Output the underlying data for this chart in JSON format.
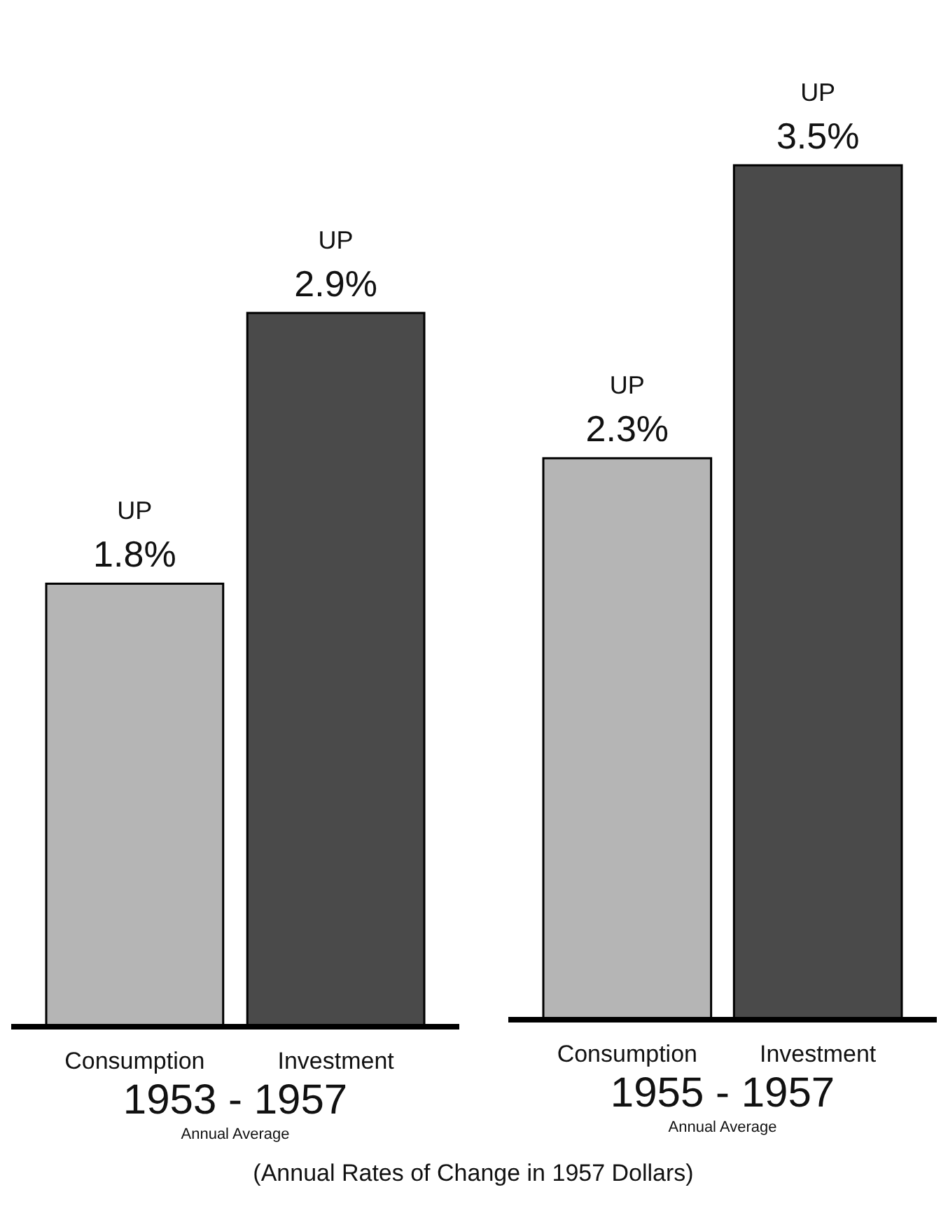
{
  "chart_data": [
    {
      "type": "bar",
      "categories": [
        "Consumption",
        "Investment"
      ],
      "values": [
        1.8,
        2.9
      ],
      "colors": [
        "#b5b5b5",
        "#4a4a4a"
      ],
      "value_labels": [
        "UP 1.8%",
        "UP 2.9%"
      ],
      "tick_labels": "x",
      "xlabel": "1953 - 1957",
      "annotations": [
        "Annual Average"
      ]
    },
    {
      "type": "bar",
      "categories": [
        "Consumption",
        "Investment"
      ],
      "values": [
        2.3,
        3.5
      ],
      "colors": [
        "#b5b5b5",
        "#4a4a4a"
      ],
      "value_labels": [
        "UP 2.3%",
        "UP 3.5%"
      ],
      "tick_labels": "x",
      "xlabel": "1955 - 1957",
      "annotations": [
        "Annual Average",
        "(Annual Rates of Change in 1957 Dollars)"
      ]
    }
  ]
}
